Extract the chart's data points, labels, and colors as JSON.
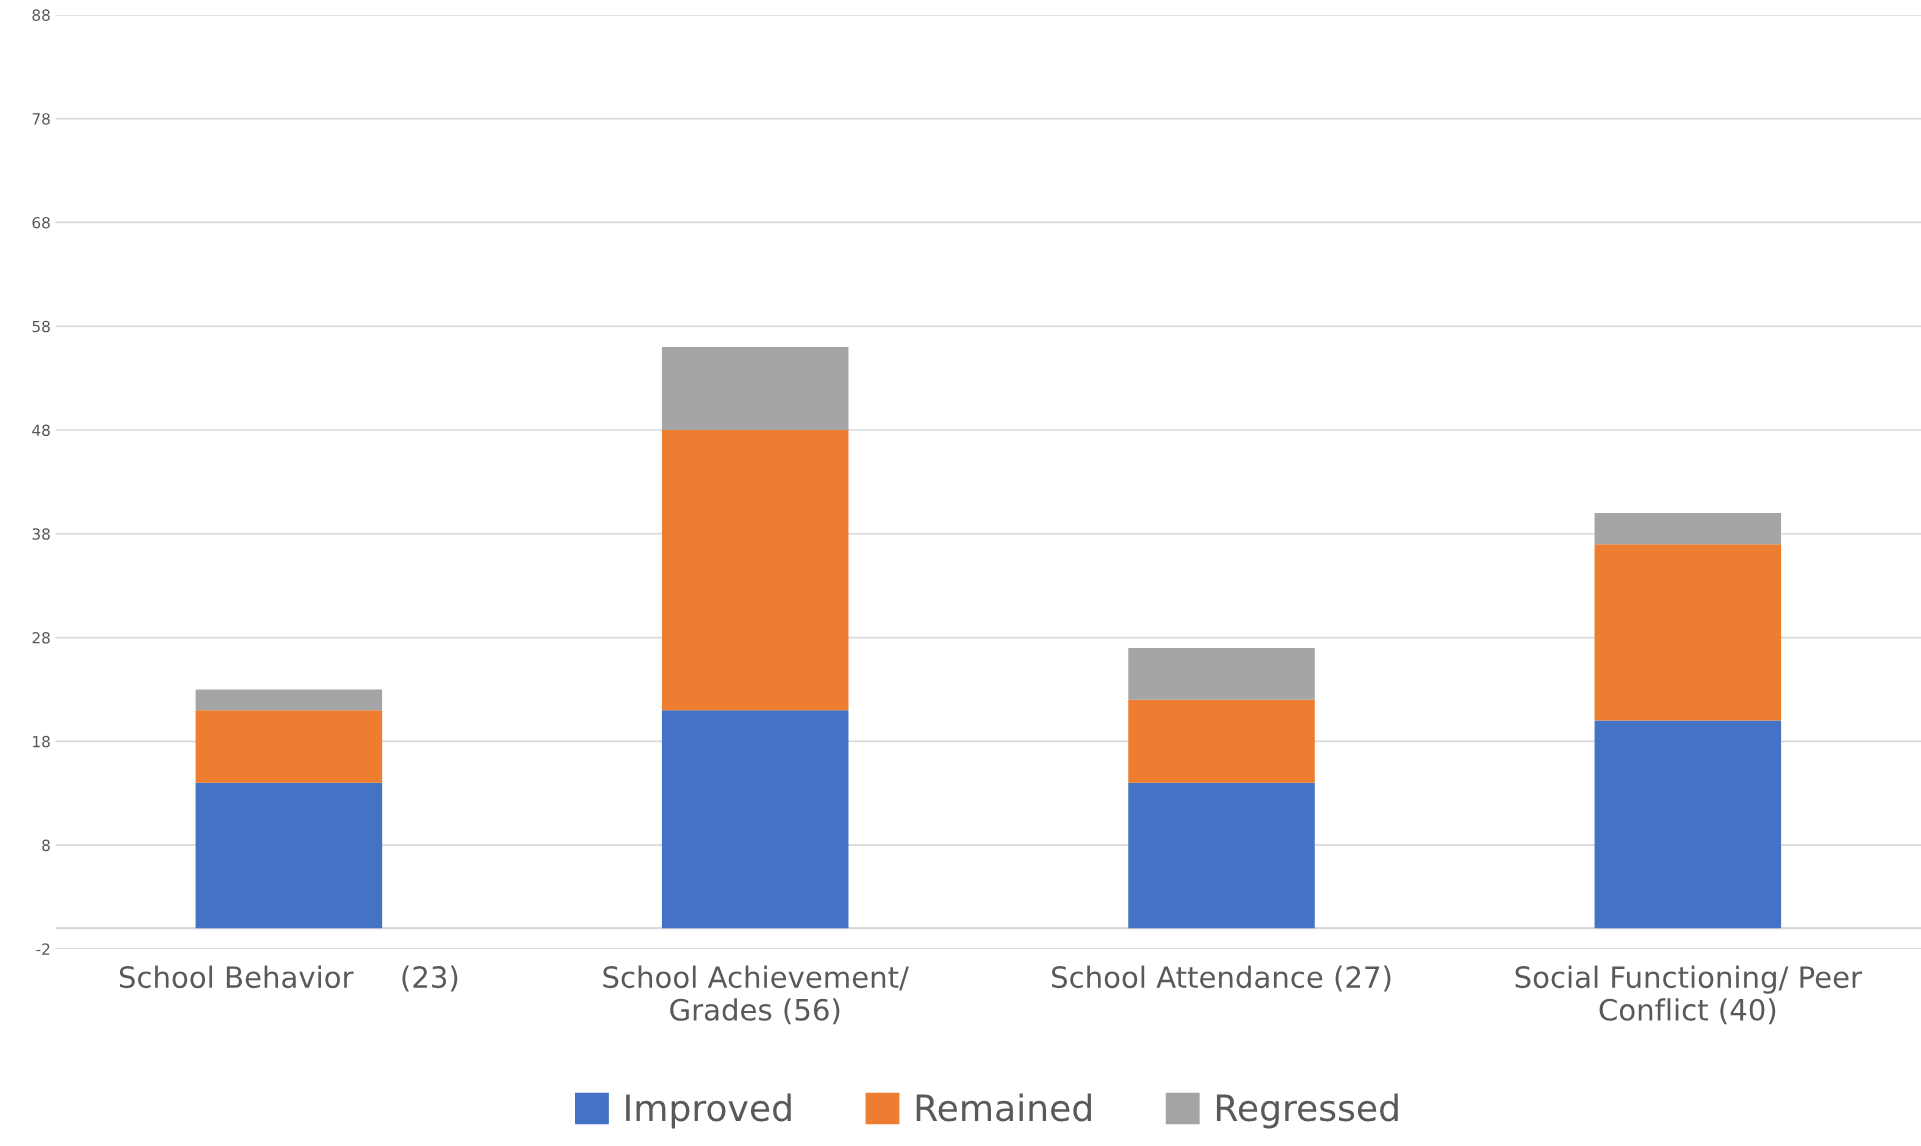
{
  "chart_data": {
    "type": "bar",
    "stacked": true,
    "categories": [
      "School Behavior     (23)",
      "School Achievement/ Grades (56)",
      "School Attendance (27)",
      "Social Functioning/ Peer Conflict (40)"
    ],
    "series": [
      {
        "name": "Improved",
        "color": "#4472c4",
        "values": [
          14,
          21,
          14,
          20
        ]
      },
      {
        "name": "Remained",
        "color": "#ed7d31",
        "values": [
          7,
          27,
          8,
          17
        ]
      },
      {
        "name": "Regressed",
        "color": "#a5a5a5",
        "values": [
          2,
          8,
          5,
          3
        ]
      }
    ],
    "ylim": [
      -2,
      88
    ],
    "yticks": [
      -2,
      8,
      18,
      28,
      38,
      48,
      58,
      68,
      78,
      88
    ],
    "grid": "y",
    "legend": "bottom",
    "ref_lines": [
      {
        "axis": "y",
        "value": 0,
        "color": "#d9d9d9"
      }
    ]
  }
}
